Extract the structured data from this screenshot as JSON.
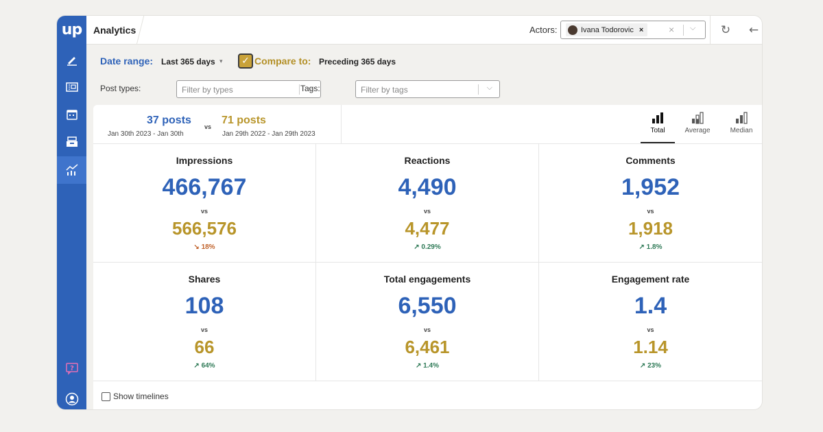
{
  "app": {
    "logo": "up",
    "title": "Analytics"
  },
  "sidebar": {
    "items": [
      {
        "icon": "pen-icon"
      },
      {
        "icon": "newspaper-icon"
      },
      {
        "icon": "calendar-icon"
      },
      {
        "icon": "inbox-tray-icon"
      },
      {
        "icon": "analytics-chart-icon",
        "active": true
      }
    ],
    "bottom": [
      {
        "icon": "help-icon"
      },
      {
        "icon": "user-icon"
      }
    ]
  },
  "header": {
    "actors_label": "Actors:",
    "actor_chip": "Ivana Todorovic",
    "chip_remove": "×",
    "clear": "×",
    "chevron": "⌵",
    "refresh": "↻",
    "back": "←",
    "forward": "→"
  },
  "filters": {
    "date_range_label": "Date range:",
    "date_range_value": "Last 365 days",
    "date_range_caret": "▾",
    "compare_checked": true,
    "compare_label": "Compare to:",
    "compare_value": "Preceding 365 days",
    "post_types_label": "Post types:",
    "post_types_placeholder": "Filter by types",
    "tags_label": "Tags:",
    "tags_placeholder": "Filter by tags",
    "chevron": "⌵"
  },
  "summary": {
    "current_posts": "37 posts",
    "current_dates": "Jan 30th 2023 - Jan 30th",
    "vs": "vs",
    "previous_posts": "71 posts",
    "previous_dates": "Jan 29th 2022 - Jan 29th 2023"
  },
  "modes": [
    {
      "label": "Total",
      "active": true
    },
    {
      "label": "Average",
      "active": false
    },
    {
      "label": "Median",
      "active": false
    }
  ],
  "metrics": [
    {
      "title": "Impressions",
      "current": "466,767",
      "vs": "vs",
      "previous": "566,576",
      "change": "↘ 18%",
      "direction": "down"
    },
    {
      "title": "Reactions",
      "current": "4,490",
      "vs": "vs",
      "previous": "4,477",
      "change": "↗ 0.29%",
      "direction": "up"
    },
    {
      "title": "Comments",
      "current": "1,952",
      "vs": "vs",
      "previous": "1,918",
      "change": "↗ 1.8%",
      "direction": "up"
    },
    {
      "title": "Shares",
      "current": "108",
      "vs": "vs",
      "previous": "66",
      "change": "↗ 64%",
      "direction": "up"
    },
    {
      "title": "Total engagements",
      "current": "6,550",
      "vs": "vs",
      "previous": "6,461",
      "change": "↗ 1.4%",
      "direction": "up"
    },
    {
      "title": "Engagement rate",
      "current": "1.4",
      "vs": "vs",
      "previous": "1.14",
      "change": "↗ 23%",
      "direction": "up"
    }
  ],
  "footer": {
    "show_timelines": "Show timelines"
  },
  "colors": {
    "brand_blue": "#2e62b8",
    "compare_gold": "#b8952a",
    "down": "#c0622b",
    "up": "#2f7a57"
  }
}
